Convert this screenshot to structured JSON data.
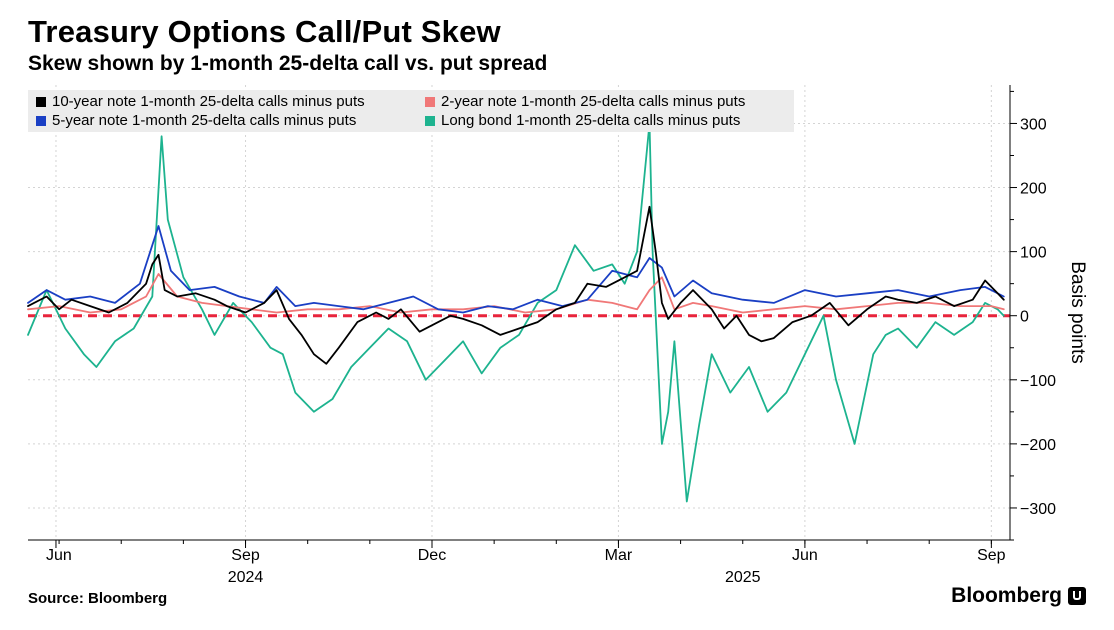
{
  "header": {
    "title": "Treasury Options Call/Put Skew",
    "subtitle": "Skew shown by 1-month 25-delta call vs. put spread"
  },
  "footer": {
    "source": "Source: Bloomberg",
    "brand": "Bloomberg"
  },
  "chart_data": {
    "type": "line",
    "title": "Treasury Options Call/Put Skew",
    "subtitle": "Skew shown by 1-month 25-delta call vs. put spread",
    "xlabel": "",
    "ylabel": "Basis points",
    "ylim": [
      -350,
      360
    ],
    "yticks": [
      300,
      200,
      100,
      0,
      -100,
      -200,
      -300
    ],
    "xlim": [
      0,
      15.8
    ],
    "xticks": [
      {
        "pos": 0.45,
        "label": "Jun"
      },
      {
        "pos": 3.5,
        "label": "Sep"
      },
      {
        "pos": 6.5,
        "label": "Dec"
      },
      {
        "pos": 9.5,
        "label": "Mar"
      },
      {
        "pos": 12.5,
        "label": "Jun"
      },
      {
        "pos": 15.5,
        "label": "Sep"
      }
    ],
    "year_labels": [
      {
        "pos": 3.5,
        "label": "2024"
      },
      {
        "pos": 11.5,
        "label": "2025"
      }
    ],
    "x_unit": "months from mid-May 2024",
    "zero_line": {
      "value": 0,
      "color": "#e8243c",
      "style": "dashed"
    },
    "legend_position": "top-left",
    "series": [
      {
        "name": "10-year note 1-month 25-delta calls minus puts",
        "color": "#000000",
        "x": [
          0.0,
          0.3,
          0.5,
          0.7,
          1.0,
          1.3,
          1.6,
          1.9,
          2.0,
          2.1,
          2.2,
          2.4,
          2.7,
          3.0,
          3.2,
          3.5,
          3.8,
          4.0,
          4.2,
          4.4,
          4.6,
          4.8,
          5.0,
          5.3,
          5.6,
          5.8,
          6.0,
          6.3,
          6.6,
          6.8,
          7.0,
          7.3,
          7.6,
          7.9,
          8.2,
          8.5,
          8.8,
          9.0,
          9.3,
          9.6,
          9.8,
          10.0,
          10.1,
          10.2,
          10.3,
          10.5,
          10.7,
          11.0,
          11.2,
          11.4,
          11.6,
          11.8,
          12.0,
          12.3,
          12.6,
          12.9,
          13.2,
          13.5,
          13.8,
          14.0,
          14.3,
          14.6,
          14.9,
          15.2,
          15.4,
          15.6,
          15.7
        ],
        "values": [
          15,
          30,
          10,
          25,
          15,
          5,
          20,
          50,
          80,
          95,
          40,
          30,
          35,
          25,
          15,
          5,
          20,
          40,
          -5,
          -30,
          -60,
          -75,
          -50,
          -10,
          5,
          -5,
          10,
          -25,
          -10,
          0,
          -5,
          -15,
          -30,
          -20,
          -10,
          10,
          20,
          50,
          45,
          60,
          70,
          170,
          100,
          20,
          -5,
          20,
          40,
          10,
          -20,
          0,
          -30,
          -40,
          -35,
          -10,
          0,
          20,
          -15,
          10,
          30,
          25,
          20,
          30,
          15,
          25,
          55,
          35,
          25
        ]
      },
      {
        "name": "2-year note 1-month 25-delta calls minus puts",
        "color": "#f07878",
        "x": [
          0.0,
          0.5,
          1.0,
          1.5,
          1.9,
          2.1,
          2.4,
          2.8,
          3.2,
          3.6,
          4.0,
          4.5,
          5.0,
          5.5,
          6.0,
          6.5,
          7.0,
          7.5,
          8.0,
          8.5,
          9.0,
          9.4,
          9.8,
          10.0,
          10.2,
          10.4,
          10.7,
          11.0,
          11.5,
          12.0,
          12.5,
          13.0,
          13.5,
          14.0,
          14.5,
          15.0,
          15.5,
          15.7
        ],
        "values": [
          10,
          15,
          5,
          10,
          30,
          65,
          30,
          20,
          15,
          10,
          5,
          10,
          10,
          15,
          5,
          10,
          10,
          15,
          5,
          10,
          25,
          20,
          10,
          40,
          60,
          10,
          20,
          15,
          5,
          10,
          15,
          10,
          15,
          20,
          20,
          15,
          15,
          10
        ]
      },
      {
        "name": "5-year note 1-month 25-delta calls minus puts",
        "color": "#1a3fc4",
        "x": [
          0.0,
          0.3,
          0.6,
          1.0,
          1.4,
          1.8,
          2.0,
          2.1,
          2.3,
          2.6,
          3.0,
          3.4,
          3.8,
          4.0,
          4.3,
          4.6,
          5.0,
          5.4,
          5.8,
          6.2,
          6.6,
          7.0,
          7.4,
          7.8,
          8.2,
          8.6,
          9.0,
          9.4,
          9.8,
          10.0,
          10.2,
          10.4,
          10.7,
          11.0,
          11.5,
          12.0,
          12.5,
          13.0,
          13.5,
          14.0,
          14.5,
          15.0,
          15.4,
          15.7
        ],
        "values": [
          20,
          40,
          25,
          30,
          20,
          50,
          110,
          140,
          70,
          40,
          45,
          30,
          20,
          45,
          15,
          20,
          15,
          10,
          20,
          30,
          10,
          5,
          15,
          10,
          25,
          15,
          25,
          70,
          60,
          90,
          75,
          30,
          55,
          35,
          25,
          20,
          40,
          30,
          35,
          40,
          30,
          40,
          45,
          30
        ]
      },
      {
        "name": "Long bond 1-month 25-delta calls minus puts",
        "color": "#1db38f",
        "x": [
          0.0,
          0.3,
          0.6,
          0.9,
          1.1,
          1.4,
          1.7,
          2.0,
          2.15,
          2.25,
          2.5,
          2.8,
          3.0,
          3.3,
          3.6,
          3.9,
          4.1,
          4.3,
          4.6,
          4.9,
          5.2,
          5.5,
          5.8,
          6.1,
          6.4,
          6.7,
          7.0,
          7.3,
          7.6,
          7.9,
          8.2,
          8.5,
          8.8,
          9.1,
          9.4,
          9.6,
          9.8,
          10.0,
          10.05,
          10.1,
          10.2,
          10.3,
          10.4,
          10.6,
          10.8,
          11.0,
          11.3,
          11.6,
          11.9,
          12.2,
          12.5,
          12.8,
          13.0,
          13.3,
          13.6,
          13.8,
          14.0,
          14.3,
          14.6,
          14.9,
          15.2,
          15.4,
          15.6,
          15.7
        ],
        "values": [
          -30,
          40,
          -20,
          -60,
          -80,
          -40,
          -20,
          30,
          280,
          150,
          60,
          10,
          -30,
          20,
          -10,
          -50,
          -60,
          -120,
          -150,
          -130,
          -80,
          -50,
          -20,
          -40,
          -100,
          -70,
          -40,
          -90,
          -50,
          -30,
          20,
          40,
          110,
          70,
          80,
          50,
          100,
          300,
          100,
          0,
          -200,
          -150,
          -40,
          -290,
          -170,
          -60,
          -120,
          -80,
          -150,
          -120,
          -60,
          0,
          -100,
          -200,
          -60,
          -30,
          -20,
          -50,
          -10,
          -30,
          -10,
          20,
          10,
          0
        ]
      }
    ]
  },
  "legend": {
    "items": [
      {
        "label": "10-year note 1-month 25-delta calls minus puts",
        "color": "#000000"
      },
      {
        "label": "2-year note 1-month 25-delta calls minus puts",
        "color": "#f07878"
      },
      {
        "label": "5-year note 1-month 25-delta calls minus puts",
        "color": "#1a3fc4"
      },
      {
        "label": "Long bond 1-month 25-delta calls minus puts",
        "color": "#1db38f"
      }
    ]
  }
}
